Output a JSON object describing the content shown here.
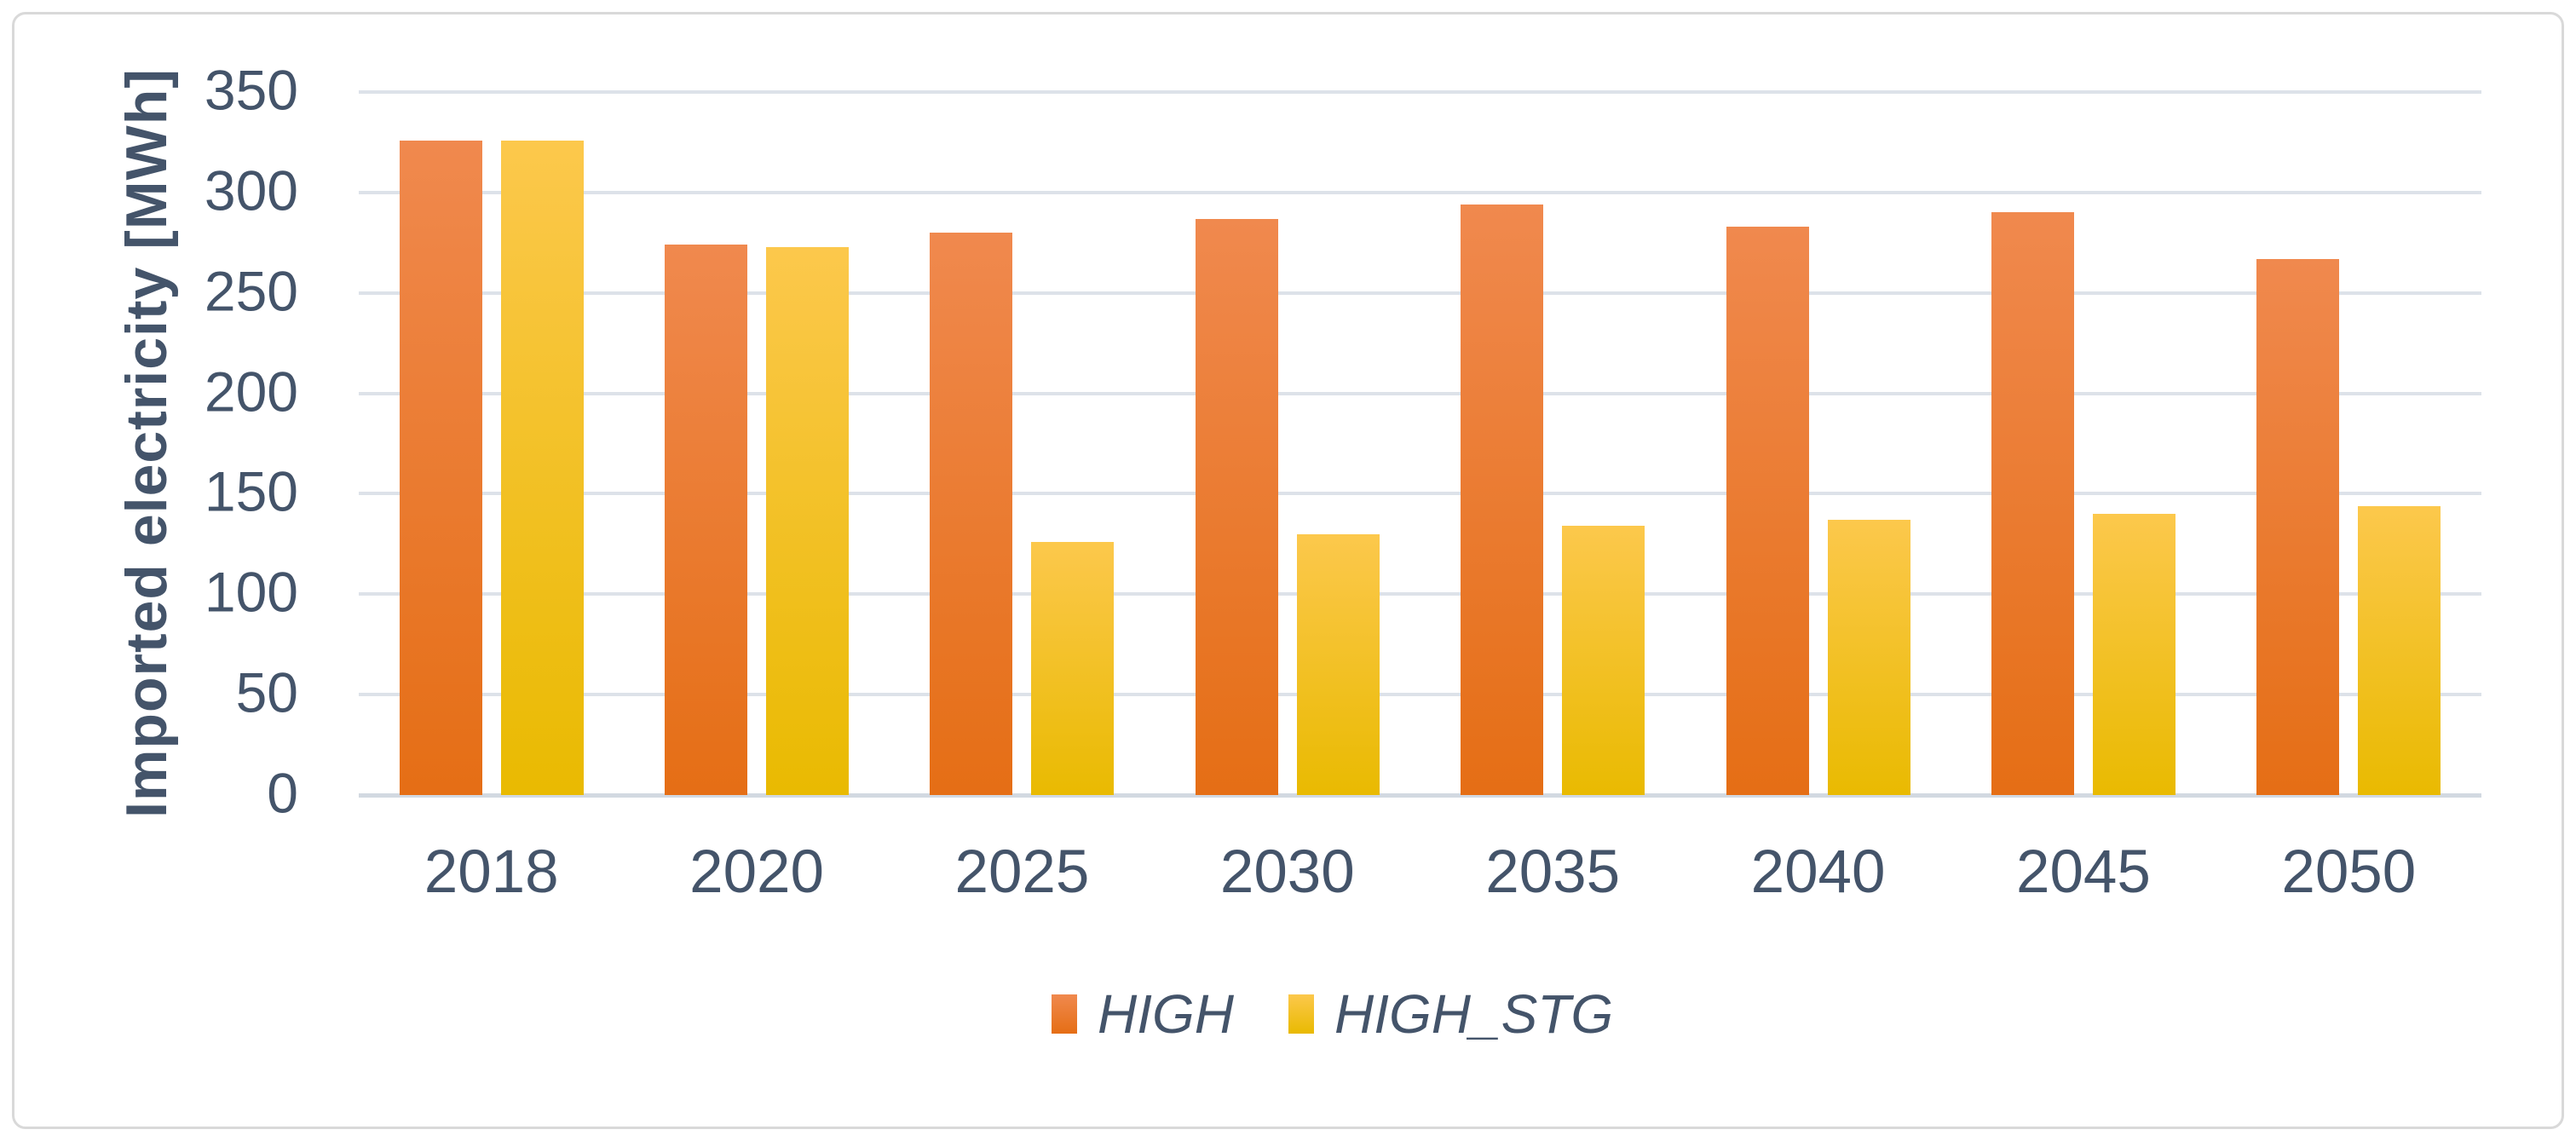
{
  "chart_data": {
    "type": "bar",
    "title": "",
    "categories": [
      "2018",
      "2020",
      "2025",
      "2030",
      "2035",
      "2040",
      "2045",
      "2050"
    ],
    "series": [
      {
        "name": "HIGH",
        "values": [
          326,
          274,
          280,
          287,
          294,
          283,
          290,
          267
        ]
      },
      {
        "name": "HIGH_STG",
        "values": [
          326,
          273,
          126,
          130,
          134,
          137,
          140,
          144
        ]
      }
    ],
    "xlabel": "",
    "ylabel": "Imported electricity [MWh]",
    "ylim": [
      0,
      350
    ],
    "yticks": [
      0,
      50,
      100,
      150,
      200,
      250,
      300,
      350
    ],
    "grid": true,
    "legend_position": "bottom-center",
    "legend_style": "italic"
  },
  "colors": {
    "series_high_top": "#F0894E",
    "series_high_bottom": "#E56E15",
    "series_high_stg_top": "#FCC84C",
    "series_high_stg_bottom": "#E9BA01",
    "text": "#44546A",
    "gridline": "#DDE2E9",
    "axis_line": "#D2D9E1",
    "chart_border": "#D9D9D9",
    "background": "#FFFFFF"
  }
}
